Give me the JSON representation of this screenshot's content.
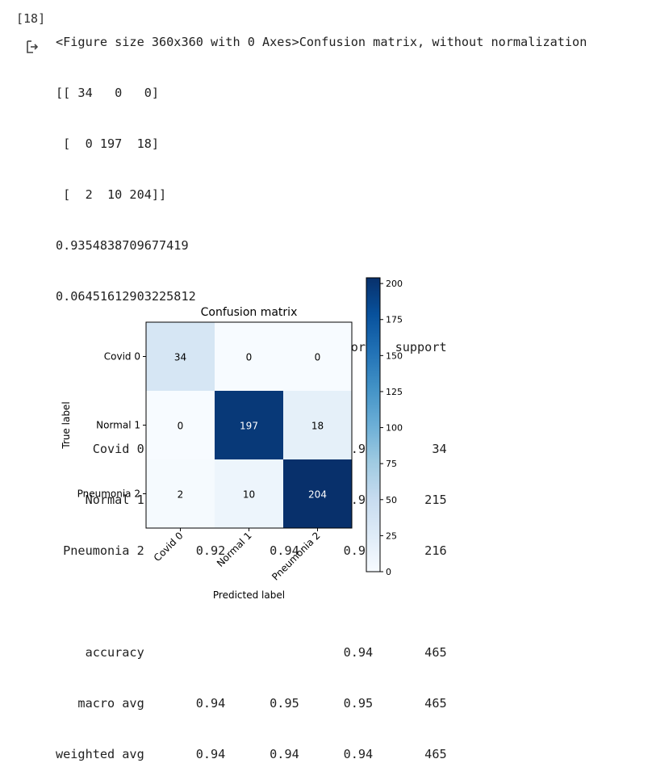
{
  "cell": {
    "execution_count": "[18]",
    "output_icon": "output-arrow-icon"
  },
  "output_lines": [
    "<Figure size 360x360 with 0 Axes>Confusion matrix, without normalization",
    "[[ 34   0   0]",
    " [  0 197  18]",
    " [  2  10 204]]",
    "0.9354838709677419",
    "0.06451612903225812",
    "              precision    recall  f1-score   support",
    "",
    "     Covid 0       0.94      1.00      0.97        34",
    "    Normal 1       0.95      0.92      0.93       215",
    " Pneumonia 2       0.92      0.94      0.93       216",
    "",
    "    accuracy                           0.94       465",
    "   macro avg       0.94      0.95      0.95       465",
    "weighted avg       0.94      0.94      0.94       465"
  ],
  "chart_data": {
    "type": "heatmap",
    "title": "Confusion matrix",
    "xlabel": "Predicted label",
    "ylabel": "True label",
    "x_categories": [
      "Covid 0",
      "Normal 1",
      "Pneumonia 2"
    ],
    "y_categories": [
      "Covid 0",
      "Normal 1",
      "Pneumonia 2"
    ],
    "values": [
      [
        34,
        0,
        0
      ],
      [
        0,
        197,
        18
      ],
      [
        2,
        10,
        204
      ]
    ],
    "colormap": "Blues",
    "colorbar": {
      "min": 0,
      "max": 204,
      "ticks": [
        0,
        25,
        50,
        75,
        100,
        125,
        150,
        175,
        200
      ]
    },
    "text_threshold": 102,
    "colors": {
      "low": "#f7fbff",
      "high": "#08306b",
      "text_dark": "#000000",
      "text_light": "#ffffff"
    }
  }
}
